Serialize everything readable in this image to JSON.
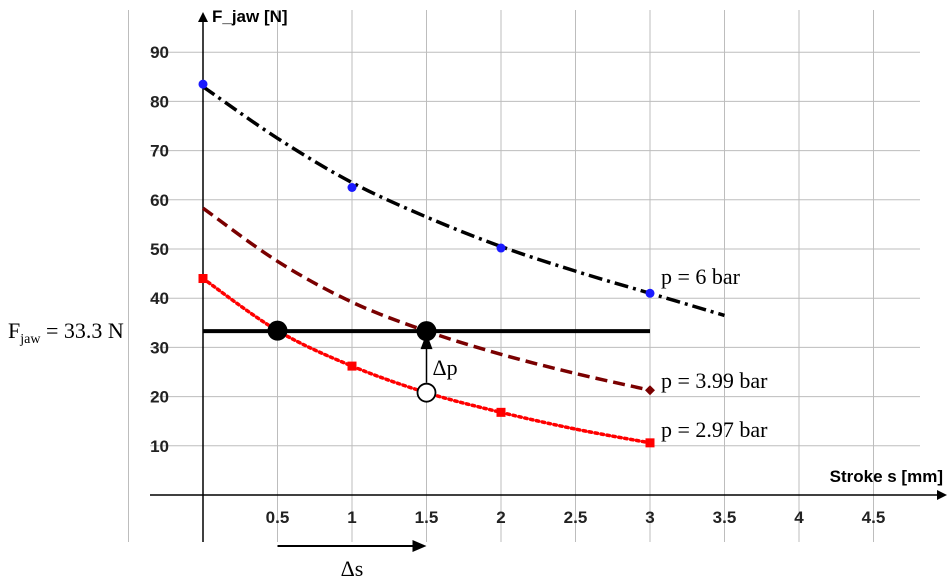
{
  "chart_data": {
    "type": "line",
    "title": "",
    "xlabel": "Stroke s [mm]",
    "ylabel": "F_jaw [N]",
    "xlim": [
      -0.35,
      5.0
    ],
    "ylim": [
      -3,
      97
    ],
    "x_ticks": [
      "0.5",
      "1",
      "1.5",
      "2",
      "2.5",
      "3",
      "3.5",
      "4",
      "4.5"
    ],
    "y_ticks": [
      "10",
      "20",
      "30",
      "40",
      "50",
      "60",
      "70",
      "80",
      "90"
    ],
    "grid": true,
    "series": [
      {
        "name": "p = 6 bar",
        "color": "#000000",
        "marker_color": "#1a1aff",
        "line_style": "dash-dot",
        "points": [
          [
            0,
            83.5
          ],
          [
            1,
            62.5
          ],
          [
            2,
            50.2
          ],
          [
            3,
            41.0
          ]
        ],
        "curve": [
          [
            0,
            83
          ],
          [
            0.5,
            72.5
          ],
          [
            1,
            63.5
          ],
          [
            1.5,
            56.5
          ],
          [
            2,
            50.5
          ],
          [
            2.5,
            45.5
          ],
          [
            3,
            41
          ],
          [
            3.5,
            36.5
          ]
        ]
      },
      {
        "name": "p = 3.99 bar",
        "color": "#7a0000",
        "marker_color": "#7a0000",
        "line_style": "dashed",
        "points": [
          [
            3,
            21.3
          ]
        ],
        "curve": [
          [
            0,
            58.3
          ],
          [
            0.5,
            47.5
          ],
          [
            1,
            39.2
          ],
          [
            1.5,
            33.3
          ],
          [
            2,
            28.6
          ],
          [
            2.5,
            24.7
          ],
          [
            3,
            21.3
          ]
        ]
      },
      {
        "name": "p = 2.97 bar",
        "color": "#ff0000",
        "marker_color": "#ff0000",
        "line_style": "dotted",
        "points": [
          [
            0,
            44
          ],
          [
            1,
            26.2
          ],
          [
            2,
            16.8
          ],
          [
            3,
            10.6
          ]
        ],
        "curve": [
          [
            0,
            44
          ],
          [
            0.5,
            33.4
          ],
          [
            1,
            26.2
          ],
          [
            1.5,
            20.8
          ],
          [
            2,
            16.8
          ],
          [
            2.5,
            13.4
          ],
          [
            3,
            10.6
          ]
        ]
      }
    ],
    "annotations": {
      "force_line": {
        "y": 33.3,
        "x_range": [
          0,
          3
        ],
        "label_main": "F",
        "label_sub": "jaw",
        "label_rest": " = 33.3 N"
      },
      "filled_points": [
        [
          0.5,
          33.4
        ],
        [
          1.5,
          33.3
        ]
      ],
      "open_point": [
        1.5,
        20.8
      ],
      "delta_p_label": "Δp",
      "delta_s_label": "Δs",
      "delta_s_arrow": [
        0.5,
        1.5
      ]
    }
  }
}
